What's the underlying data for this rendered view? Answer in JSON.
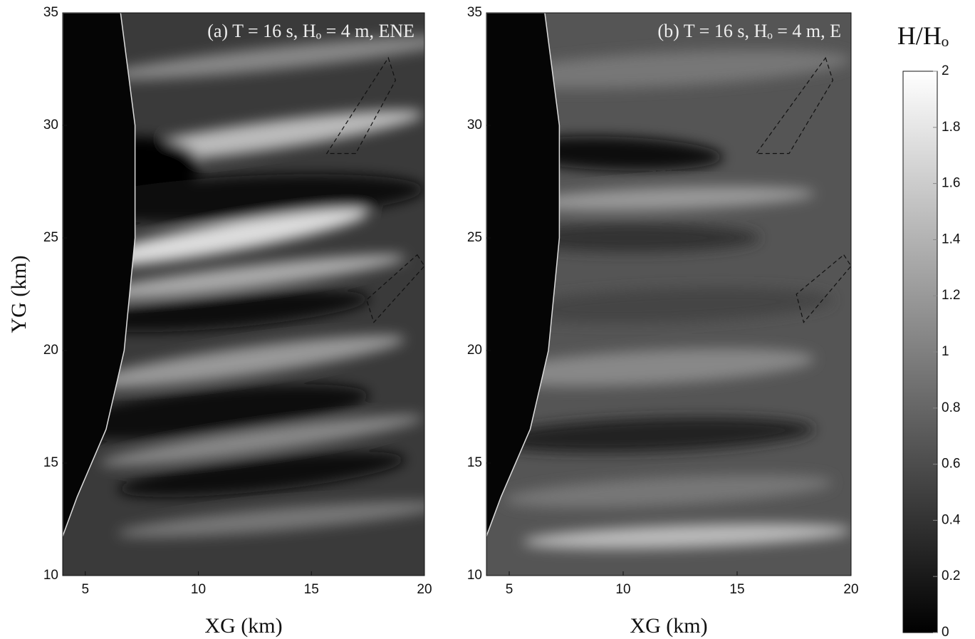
{
  "chart_data": [
    {
      "type": "map",
      "title": "(a) T = 16 s, Hₒ = 4 m, ENE",
      "x_label": "XG (km)",
      "y_label": "YG (km)",
      "xlim": [
        4,
        20
      ],
      "xticks": [
        5,
        10,
        15,
        20
      ],
      "ylim": [
        10,
        35
      ],
      "yticks": [
        10,
        15,
        20,
        25,
        30,
        35
      ]
    },
    {
      "type": "map",
      "title": "(b) T = 16 s, Hₒ = 4 m, E",
      "x_label": "XG (km)",
      "xlim": [
        4,
        20
      ],
      "xticks": [
        5,
        10,
        15,
        20
      ],
      "ylim": [
        10,
        35
      ],
      "yticks": [
        10,
        15,
        20,
        25,
        30,
        35
      ]
    },
    {
      "type": "colorbar",
      "title": "H/Hₒ",
      "ylim": [
        0,
        2
      ],
      "yticks": [
        0,
        0.2,
        0.4,
        0.6,
        0.8,
        1,
        1.2,
        1.4,
        1.6,
        1.8,
        2
      ]
    }
  ]
}
